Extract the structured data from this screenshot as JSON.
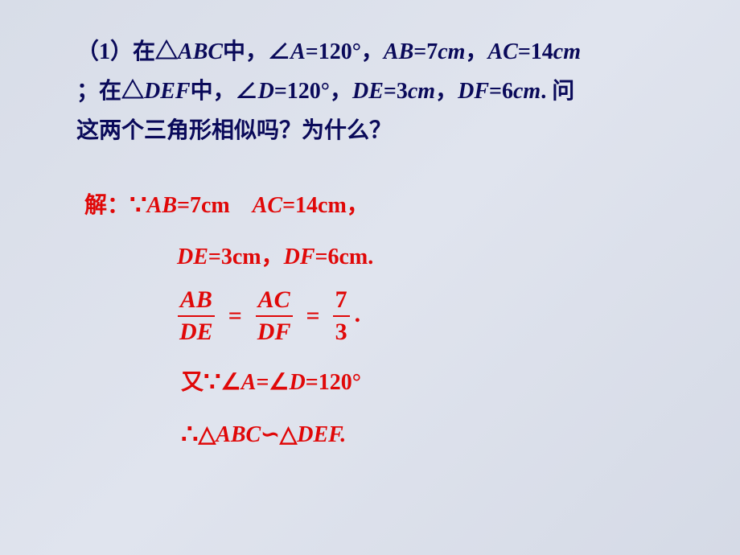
{
  "colors": {
    "problem_text": "#0a0a5a",
    "solution_text": "#e00808",
    "background_start": "#d8dde8",
    "background_end": "#d5dae6"
  },
  "fontsize": {
    "body": 28,
    "symbol": 34,
    "fraction": 30
  },
  "problem": {
    "p1_a": "（1）在△",
    "p1_b": "ABC",
    "p1_c": "中，∠",
    "p1_d": "A",
    "p1_e": "=120°，",
    "p1_f": "AB",
    "p1_g": "=7",
    "p1_h": "cm",
    "p1_i": "，",
    "p1_j": "AC",
    "p1_k": "=14",
    "p1_l": "cm",
    "p2_a": "；在△",
    "p2_b": "DEF",
    "p2_c": "中，∠",
    "p2_d": "D",
    "p2_e": "=120°，",
    "p2_f": "DE",
    "p2_g": "=3",
    "p2_h": "cm",
    "p2_i": "，",
    "p2_j": "DF",
    "p2_k": "=6",
    "p2_l": "cm",
    "p2_m": ". 问",
    "p3": "这两个三角形相似吗？为什么？"
  },
  "solution": {
    "s1_a": "解：",
    "s1_because": "∵",
    "s1_b": "AB",
    "s1_c": "=7cm　",
    "s1_d": "AC",
    "s1_e": "=14cm，",
    "s2_a": "DE",
    "s2_b": "=3cm，",
    "s2_c": "DF",
    "s2_d": "=6cm.",
    "frac1_num": "AB",
    "frac1_den": "DE",
    "eq": "=",
    "frac2_num": "AC",
    "frac2_den": "DF",
    "frac3_num": "7",
    "frac3_den": "3",
    "period": ".",
    "s4_a": "又",
    "s4_because": "∵",
    "s4_b": "∠",
    "s4_c": "A",
    "s4_d": "=∠",
    "s4_e": "D",
    "s4_f": "=120°",
    "s5_therefore": "∴",
    "s5_a": "△",
    "s5_b": "ABC",
    "s5_c": "∽",
    "s5_d": "△",
    "s5_e": "DEF."
  }
}
